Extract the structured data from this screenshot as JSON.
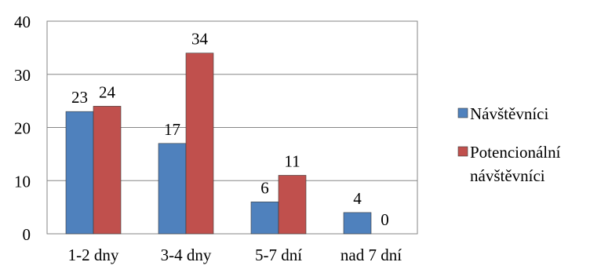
{
  "chart_data": {
    "type": "bar",
    "categories": [
      "1-2 dny",
      "3-4 dny",
      "5-7 dní",
      "nad 7 dní"
    ],
    "series": [
      {
        "name": "Návštěvníci",
        "values": [
          23,
          17,
          6,
          4
        ],
        "color": "#4F81BD"
      },
      {
        "name": "Potencionální návštěvníci",
        "legend_lines": [
          "Potencionální",
          "návštěvníci"
        ],
        "values": [
          24,
          34,
          11,
          0
        ],
        "color": "#C0504D"
      }
    ],
    "yticks": [
      0,
      10,
      20,
      30,
      40
    ],
    "ylim": [
      0,
      40
    ],
    "title": "",
    "xlabel": "",
    "ylabel": "",
    "grid": "horizontal",
    "legend_position": "right",
    "data_labels": true
  }
}
